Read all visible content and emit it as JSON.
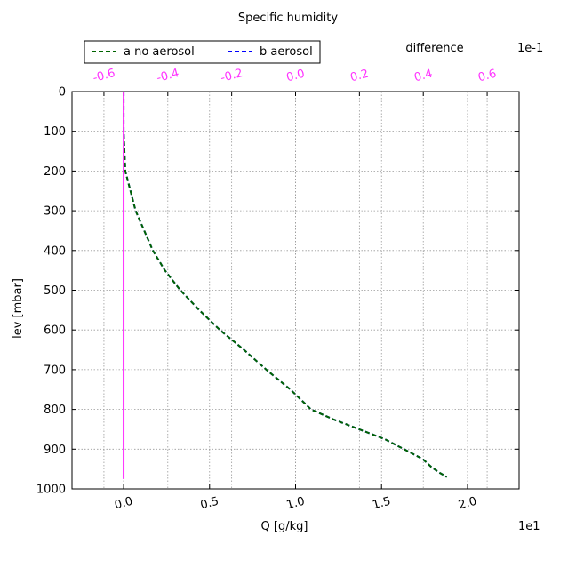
{
  "chart_data": {
    "type": "line",
    "title": "Specific humidity",
    "xlabel": "Q [g/kg]",
    "ylabel": "lev [mbar]",
    "x_scale_label": "1e1",
    "top_axis_label": "difference",
    "top_scale_label": "1e-1",
    "xlim": [
      -0.3,
      2.3
    ],
    "ylim": [
      1000,
      0
    ],
    "top_xlim": [
      -0.7,
      0.7
    ],
    "xticks": [
      "0.0",
      "0.5",
      "1.0",
      "1.5",
      "2.0"
    ],
    "xtick_values": [
      0.0,
      0.5,
      1.0,
      1.5,
      2.0
    ],
    "yticks": [
      "0",
      "100",
      "200",
      "300",
      "400",
      "500",
      "600",
      "700",
      "800",
      "900",
      "1000"
    ],
    "ytick_values": [
      0,
      100,
      200,
      300,
      400,
      500,
      600,
      700,
      800,
      900,
      1000
    ],
    "top_xticks": [
      "-0.6",
      "-0.4",
      "-0.2",
      "0.0",
      "0.2",
      "0.4",
      "0.6"
    ],
    "top_xtick_values": [
      -0.6,
      -0.4,
      -0.2,
      0.0,
      0.2,
      0.4,
      0.6
    ],
    "grid": true,
    "legend": {
      "placement": "top-left, above plot",
      "entries": [
        "a no aerosol",
        "b aerosol"
      ]
    },
    "colors": {
      "a": "#006400",
      "b": "#0000ff",
      "difference": "#ff33ff",
      "tick_top": "#ff33ff"
    },
    "series": [
      {
        "name": "a no aerosol",
        "style": "dashed",
        "x": [
          0.0,
          0.0,
          0.005,
          0.01,
          0.04,
          0.07,
          0.12,
          0.17,
          0.24,
          0.33,
          0.44,
          0.56,
          0.7,
          0.83,
          0.97,
          1.09,
          1.22,
          1.37,
          1.52,
          1.63,
          1.74,
          1.79,
          1.84,
          1.88
        ],
        "y": [
          0,
          100,
          150,
          200,
          250,
          300,
          350,
          400,
          450,
          500,
          550,
          600,
          650,
          700,
          750,
          800,
          825,
          850,
          875,
          900,
          925,
          945,
          960,
          970
        ]
      },
      {
        "name": "b aerosol",
        "style": "dashed",
        "x": [
          0.0,
          0.0,
          0.005,
          0.01,
          0.04,
          0.07,
          0.12,
          0.17,
          0.24,
          0.33,
          0.44,
          0.56,
          0.7,
          0.83,
          0.97,
          1.09,
          1.22,
          1.37,
          1.52,
          1.63,
          1.74,
          1.79,
          1.84,
          1.88
        ],
        "y": [
          0,
          100,
          150,
          200,
          250,
          300,
          350,
          400,
          450,
          500,
          550,
          600,
          650,
          700,
          750,
          800,
          825,
          850,
          875,
          900,
          925,
          945,
          960,
          970
        ]
      },
      {
        "name": "difference",
        "style": "solid",
        "x": [
          0.0,
          0.0
        ],
        "y": [
          0,
          975
        ]
      }
    ]
  }
}
